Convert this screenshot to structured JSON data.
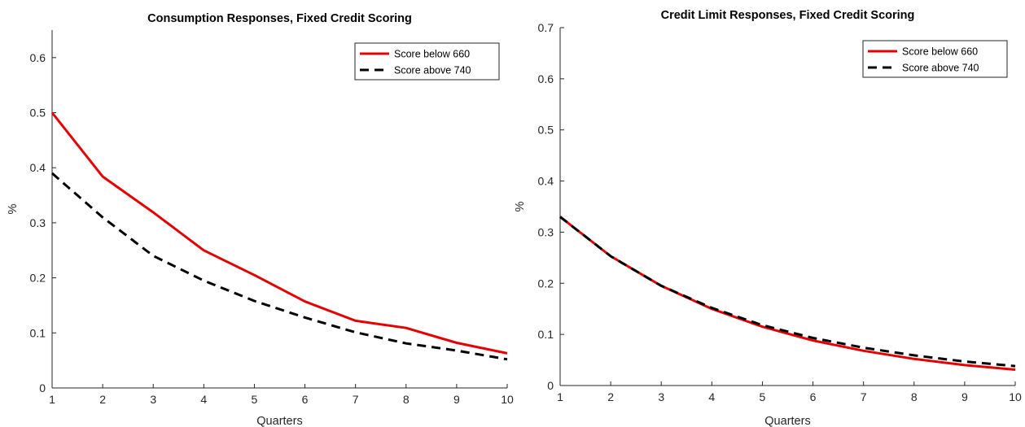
{
  "chart_data": [
    {
      "type": "line",
      "title": "Consumption Responses, Fixed Credit Scoring",
      "xlabel": "Quarters",
      "ylabel": "%",
      "xlim": [
        1,
        10
      ],
      "ylim": [
        0,
        0.65
      ],
      "xticks": [
        1,
        2,
        3,
        4,
        5,
        6,
        7,
        8,
        9,
        10
      ],
      "yticks": [
        0,
        0.1,
        0.2,
        0.3,
        0.4,
        0.5,
        0.6
      ],
      "x": [
        1,
        2,
        3,
        4,
        5,
        6,
        7,
        8,
        9,
        10
      ],
      "legend_position": "top-right",
      "grid": false,
      "series": [
        {
          "name": "Score below 660",
          "color": "#e50000",
          "style": "solid",
          "values": [
            0.5,
            0.384,
            0.319,
            0.25,
            0.205,
            0.157,
            0.122,
            0.109,
            0.082,
            0.063
          ]
        },
        {
          "name": "Score above 740",
          "color": "#000000",
          "style": "dashed",
          "values": [
            0.39,
            0.31,
            0.24,
            0.195,
            0.158,
            0.128,
            0.101,
            0.081,
            0.068,
            0.052
          ]
        }
      ]
    },
    {
      "type": "line",
      "title": "Credit Limit Responses, Fixed Credit Scoring",
      "xlabel": "Quarters",
      "ylabel": "%",
      "xlim": [
        1,
        10
      ],
      "ylim": [
        0,
        0.7
      ],
      "xticks": [
        1,
        2,
        3,
        4,
        5,
        6,
        7,
        8,
        9,
        10
      ],
      "yticks": [
        0,
        0.1,
        0.2,
        0.3,
        0.4,
        0.5,
        0.6,
        0.7
      ],
      "x": [
        1,
        2,
        3,
        4,
        5,
        6,
        7,
        8,
        9,
        10
      ],
      "legend_position": "top-right",
      "grid": false,
      "series": [
        {
          "name": "Score below 660",
          "color": "#e50000",
          "style": "solid",
          "values": [
            0.33,
            0.253,
            0.195,
            0.15,
            0.115,
            0.088,
            0.068,
            0.052,
            0.04,
            0.031
          ]
        },
        {
          "name": "Score above 740",
          "color": "#000000",
          "style": "dashed",
          "values": [
            0.33,
            0.253,
            0.195,
            0.152,
            0.118,
            0.093,
            0.074,
            0.059,
            0.047,
            0.038
          ]
        }
      ]
    }
  ]
}
